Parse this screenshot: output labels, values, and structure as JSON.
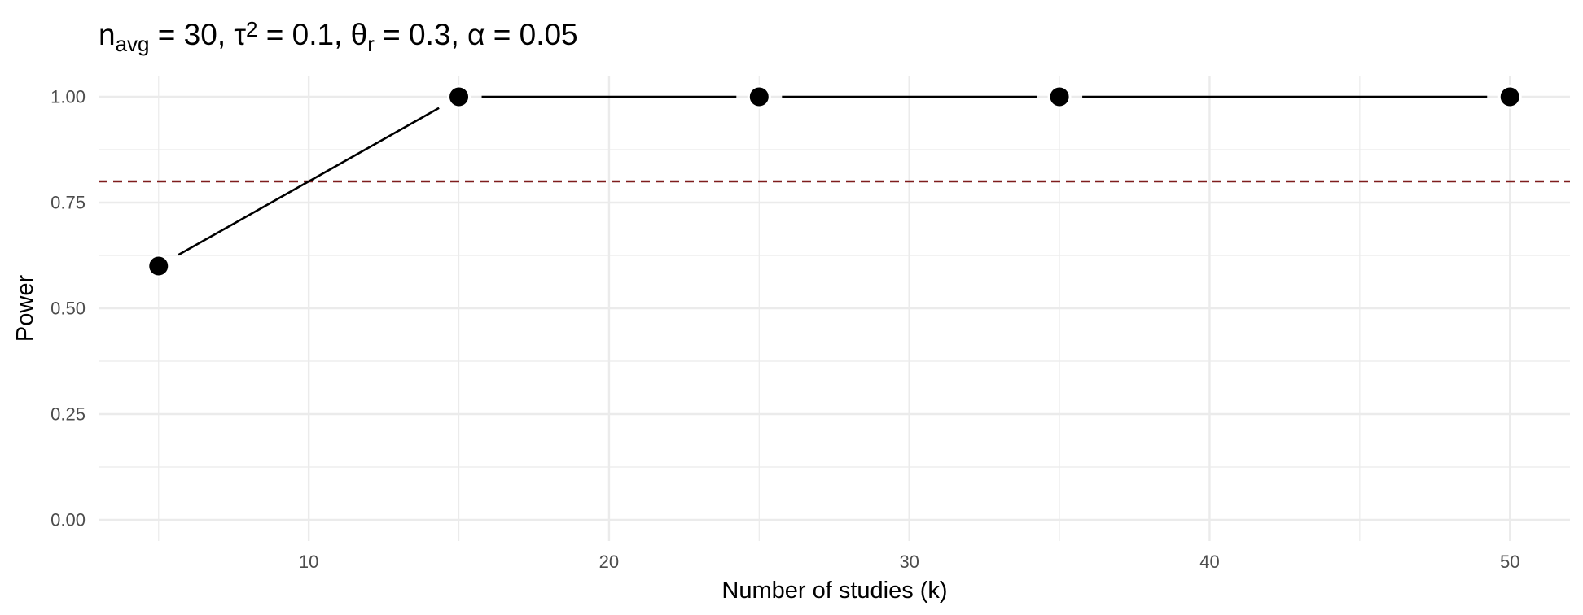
{
  "chart_data": {
    "type": "line",
    "title": {
      "parts": [
        {
          "text": "n"
        },
        {
          "text": "avg",
          "shift": "sub"
        },
        {
          "text": " = 30, τ"
        },
        {
          "text": "2",
          "shift": "super"
        },
        {
          "text": " = 0.1, θ"
        },
        {
          "text": "r",
          "shift": "sub"
        },
        {
          "text": " = 0.3, α = 0.05"
        }
      ]
    },
    "xlabel": "Number of studies (k)",
    "ylabel": "Power",
    "xlim": [
      3,
      52
    ],
    "ylim": [
      -0.05,
      1.05
    ],
    "x_ticks": [
      10,
      20,
      30,
      40,
      50
    ],
    "x_tick_labels": [
      "10",
      "20",
      "30",
      "40",
      "50"
    ],
    "x_minor_ticks": [
      5,
      15,
      25,
      35,
      45
    ],
    "y_ticks": [
      0,
      0.25,
      0.5,
      0.75,
      1.0
    ],
    "y_tick_labels": [
      "0.00",
      "0.25",
      "0.50",
      "0.75",
      "1.00"
    ],
    "y_minor_ticks": [
      0.125,
      0.375,
      0.625,
      0.875
    ],
    "grid": true,
    "legend": "none",
    "series": [
      {
        "x": [
          5,
          15,
          25,
          35,
          50
        ],
        "y": [
          0.6,
          1.0,
          1.0,
          1.0,
          1.0
        ],
        "color": "#000000",
        "marker": "filled-circle"
      }
    ],
    "reference_line": {
      "orientation": "horizontal",
      "y": 0.8,
      "style": "dashed",
      "color": "#7f1d1d"
    },
    "colors": {
      "grid": "#ebebeb",
      "tick_text": "#4d4d4d",
      "text": "#000000"
    }
  }
}
